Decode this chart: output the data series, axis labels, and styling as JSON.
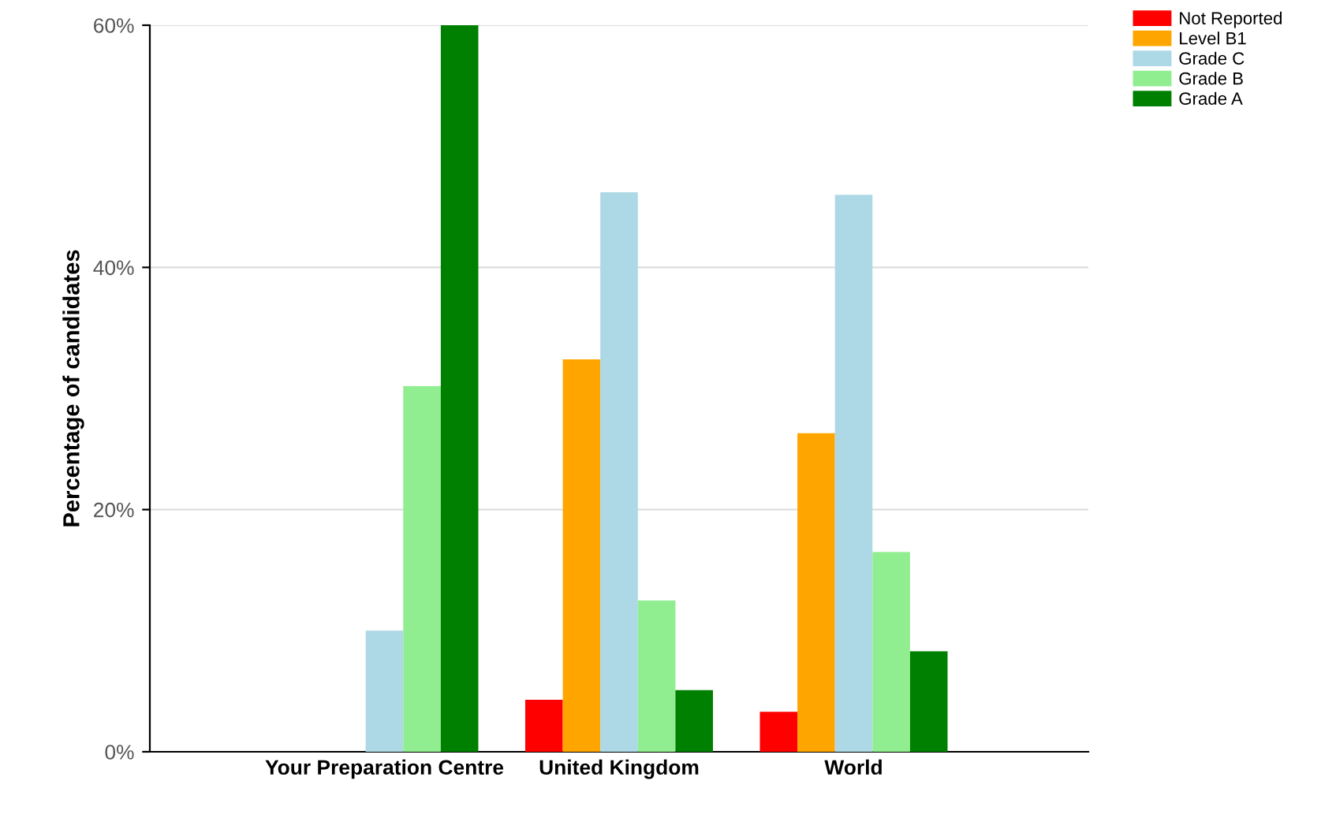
{
  "chart_data": {
    "type": "bar",
    "ylabel": "Percentage of candidates",
    "categories": [
      "Your Preparation Centre",
      "United Kingdom",
      "World"
    ],
    "series": [
      {
        "name": "Not Reported",
        "color": "#ff0000",
        "values": [
          0,
          4.3,
          3.3
        ]
      },
      {
        "name": "Level B1",
        "color": "#ffa500",
        "values": [
          0,
          32.4,
          26.3
        ]
      },
      {
        "name": "Grade C",
        "color": "#add8e6",
        "values": [
          10,
          46.2,
          46.0
        ]
      },
      {
        "name": "Grade B",
        "color": "#90ee90",
        "values": [
          30.2,
          12.5,
          16.5
        ]
      },
      {
        "name": "Grade A",
        "color": "#008000",
        "values": [
          60,
          5.1,
          8.3
        ]
      }
    ],
    "ylim": [
      0,
      60
    ],
    "yticks": [
      {
        "value": 0,
        "label": "0%"
      },
      {
        "value": 20,
        "label": "20%"
      },
      {
        "value": 40,
        "label": "40%"
      },
      {
        "value": 60,
        "label": "60%"
      }
    ],
    "grid": "y",
    "legend": "top right"
  }
}
